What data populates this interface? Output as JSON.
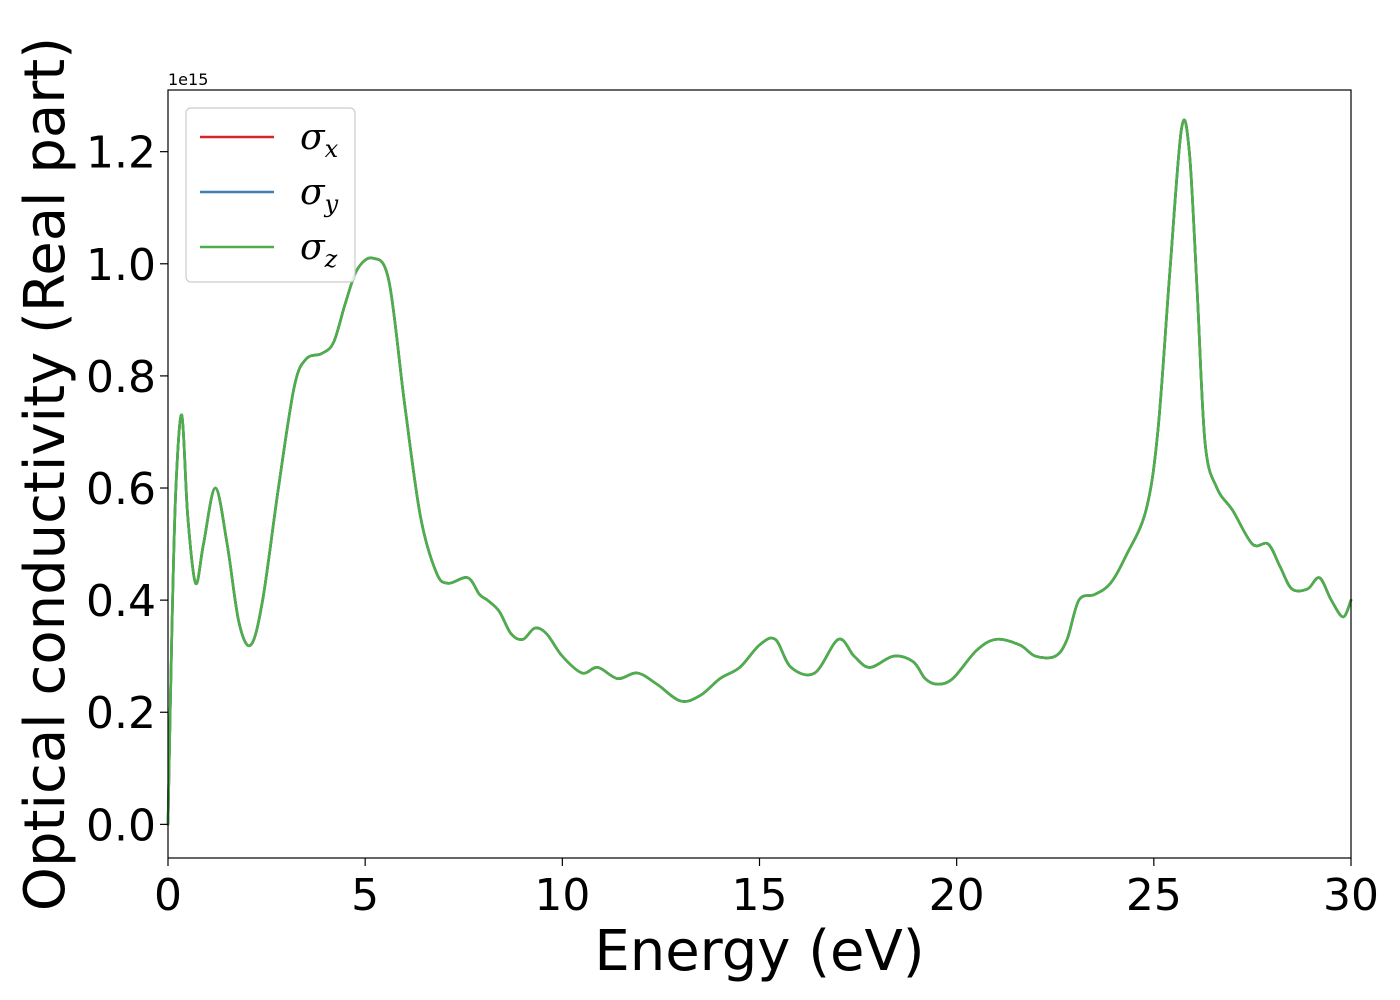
{
  "chart_data": {
    "type": "line",
    "xlabel": "Energy (eV)",
    "ylabel": "Optical conductivity (Real part)",
    "y_offset_label": "1e15",
    "xlim": [
      0,
      30
    ],
    "ylim": [
      -0.06,
      1.31
    ],
    "x_ticks": [
      0,
      5,
      10,
      15,
      20,
      25,
      30
    ],
    "x_tick_labels": [
      "0",
      "5",
      "10",
      "15",
      "20",
      "25",
      "30"
    ],
    "y_ticks": [
      0.0,
      0.2,
      0.4,
      0.6,
      0.8,
      1.0,
      1.2
    ],
    "y_tick_labels": [
      "0.0",
      "0.2",
      "0.4",
      "0.6",
      "0.8",
      "1.0",
      "1.2"
    ],
    "grid": false,
    "legend_position": "top-left",
    "x": [
      0,
      0.1,
      0.2,
      0.35,
      0.5,
      0.7,
      0.9,
      1.2,
      1.5,
      1.8,
      2.1,
      2.4,
      2.8,
      3.2,
      3.5,
      3.9,
      4.2,
      4.5,
      4.8,
      5.2,
      5.6,
      6.0,
      6.4,
      6.8,
      7.1,
      7.6,
      7.9,
      8.1,
      8.4,
      8.7,
      9.0,
      9.3,
      9.6,
      10.0,
      10.5,
      10.9,
      11.4,
      11.9,
      12.4,
      13.0,
      13.5,
      14.0,
      14.5,
      15.0,
      15.4,
      15.8,
      16.4,
      17.0,
      17.4,
      17.8,
      18.4,
      18.9,
      19.2,
      19.5,
      19.9,
      20.5,
      21.0,
      21.6,
      22.0,
      22.5,
      22.8,
      23.1,
      23.5,
      23.9,
      24.3,
      24.8,
      25.1,
      25.4,
      25.7,
      25.9,
      26.1,
      26.3,
      26.6,
      27.0,
      27.5,
      27.9,
      28.2,
      28.5,
      28.9,
      29.2,
      29.5,
      29.8,
      30.0
    ],
    "series": [
      {
        "name": "σx",
        "label_base": "σ",
        "label_sub": "x",
        "color": "#d62728",
        "values": [
          0.0,
          0.35,
          0.6,
          0.73,
          0.55,
          0.43,
          0.5,
          0.6,
          0.5,
          0.36,
          0.32,
          0.4,
          0.6,
          0.78,
          0.83,
          0.84,
          0.86,
          0.93,
          0.99,
          1.01,
          0.97,
          0.75,
          0.55,
          0.45,
          0.43,
          0.44,
          0.41,
          0.4,
          0.38,
          0.34,
          0.33,
          0.35,
          0.34,
          0.3,
          0.27,
          0.28,
          0.26,
          0.27,
          0.25,
          0.22,
          0.23,
          0.26,
          0.28,
          0.32,
          0.33,
          0.28,
          0.27,
          0.33,
          0.3,
          0.28,
          0.3,
          0.29,
          0.26,
          0.25,
          0.26,
          0.31,
          0.33,
          0.32,
          0.3,
          0.3,
          0.33,
          0.4,
          0.41,
          0.43,
          0.48,
          0.56,
          0.7,
          0.98,
          1.24,
          1.2,
          0.95,
          0.68,
          0.6,
          0.56,
          0.5,
          0.5,
          0.46,
          0.42,
          0.42,
          0.44,
          0.4,
          0.37,
          0.4
        ]
      },
      {
        "name": "σy",
        "label_base": "σ",
        "label_sub": "y",
        "color": "#3a7fb5",
        "values": [
          0.0,
          0.35,
          0.6,
          0.73,
          0.55,
          0.43,
          0.5,
          0.6,
          0.5,
          0.36,
          0.32,
          0.4,
          0.6,
          0.78,
          0.83,
          0.84,
          0.86,
          0.93,
          0.99,
          1.01,
          0.97,
          0.75,
          0.55,
          0.45,
          0.43,
          0.44,
          0.41,
          0.4,
          0.38,
          0.34,
          0.33,
          0.35,
          0.34,
          0.3,
          0.27,
          0.28,
          0.26,
          0.27,
          0.25,
          0.22,
          0.23,
          0.26,
          0.28,
          0.32,
          0.33,
          0.28,
          0.27,
          0.33,
          0.3,
          0.28,
          0.3,
          0.29,
          0.26,
          0.25,
          0.26,
          0.31,
          0.33,
          0.32,
          0.3,
          0.3,
          0.33,
          0.4,
          0.41,
          0.43,
          0.48,
          0.56,
          0.7,
          0.98,
          1.24,
          1.2,
          0.95,
          0.68,
          0.6,
          0.56,
          0.5,
          0.5,
          0.46,
          0.42,
          0.42,
          0.44,
          0.4,
          0.37,
          0.4
        ]
      },
      {
        "name": "σz",
        "label_base": "σ",
        "label_sub": "z",
        "color": "#4daf4a",
        "values": [
          0.0,
          0.35,
          0.6,
          0.73,
          0.55,
          0.43,
          0.5,
          0.6,
          0.5,
          0.36,
          0.32,
          0.4,
          0.6,
          0.78,
          0.83,
          0.84,
          0.86,
          0.93,
          0.99,
          1.01,
          0.97,
          0.75,
          0.55,
          0.45,
          0.43,
          0.44,
          0.41,
          0.4,
          0.38,
          0.34,
          0.33,
          0.35,
          0.34,
          0.3,
          0.27,
          0.28,
          0.26,
          0.27,
          0.25,
          0.22,
          0.23,
          0.26,
          0.28,
          0.32,
          0.33,
          0.28,
          0.27,
          0.33,
          0.3,
          0.28,
          0.3,
          0.29,
          0.26,
          0.25,
          0.26,
          0.31,
          0.33,
          0.32,
          0.3,
          0.3,
          0.33,
          0.4,
          0.41,
          0.43,
          0.48,
          0.56,
          0.7,
          0.98,
          1.24,
          1.2,
          0.95,
          0.68,
          0.6,
          0.56,
          0.5,
          0.5,
          0.46,
          0.42,
          0.42,
          0.44,
          0.4,
          0.37,
          0.4
        ]
      }
    ]
  }
}
